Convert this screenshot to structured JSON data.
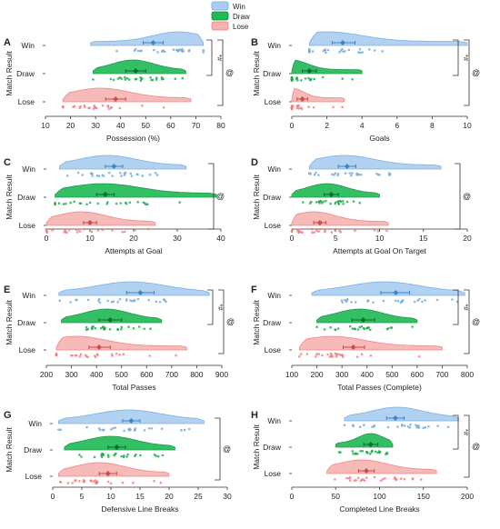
{
  "legend": {
    "items": [
      {
        "label": "Win",
        "color": "#6fa8dc"
      },
      {
        "label": "Draw",
        "color": "#1db954"
      },
      {
        "label": "Lose",
        "color": "#ef7a78"
      }
    ]
  },
  "colors": {
    "win": "#6fa8dc",
    "draw": "#1aa84a",
    "lose": "#ef7a78"
  },
  "chart_data": [
    {
      "panel": "A",
      "type": "raincloud",
      "title": "",
      "xlabel": "Possession (%)",
      "ylabel": "Match Result",
      "categories": [
        "Win",
        "Draw",
        "Lose"
      ],
      "xlim": [
        10,
        80
      ],
      "xticks": [
        10,
        20,
        30,
        40,
        50,
        60,
        70,
        80
      ],
      "series": [
        {
          "name": "Win",
          "mean": 53,
          "ci": [
            49,
            57
          ],
          "range": [
            28,
            73
          ],
          "peak": 63
        },
        {
          "name": "Draw",
          "mean": 46,
          "ci": [
            42,
            50
          ],
          "range": [
            29,
            66
          ],
          "peak": 45
        },
        {
          "name": "Lose",
          "mean": 38,
          "ci": [
            34,
            42
          ],
          "range": [
            17,
            68
          ],
          "peak": 32
        }
      ],
      "annotations": [
        "*#",
        "@"
      ]
    },
    {
      "panel": "B",
      "type": "raincloud",
      "title": "",
      "xlabel": "Goals",
      "ylabel": "Match Result",
      "categories": [
        "Win",
        "Draw",
        "Lose"
      ],
      "xlim": [
        0,
        10
      ],
      "xticks": [
        0,
        2,
        4,
        6,
        8,
        10
      ],
      "series": [
        {
          "name": "Win",
          "mean": 2.9,
          "ci": [
            2.3,
            3.6
          ],
          "range": [
            1,
            10
          ],
          "peak": 2
        },
        {
          "name": "Draw",
          "mean": 1.0,
          "ci": [
            0.6,
            1.4
          ],
          "range": [
            0,
            4
          ],
          "peak": 0
        },
        {
          "name": "Lose",
          "mean": 0.6,
          "ci": [
            0.3,
            0.9
          ],
          "range": [
            0,
            3
          ],
          "peak": 0
        }
      ],
      "annotations": [
        "*#",
        "@"
      ]
    },
    {
      "panel": "C",
      "type": "raincloud",
      "title": "",
      "xlabel": "Attempts at Goal",
      "ylabel": "Match Result",
      "categories": [
        "Win",
        "Draw",
        "Lose"
      ],
      "xlim": [
        0,
        40
      ],
      "xticks": [
        0,
        10,
        20,
        30,
        40
      ],
      "series": [
        {
          "name": "Win",
          "mean": 15.5,
          "ci": [
            13.5,
            17.5
          ],
          "range": [
            3,
            32
          ],
          "peak": 14
        },
        {
          "name": "Draw",
          "mean": 13.5,
          "ci": [
            11.5,
            15.5
          ],
          "range": [
            2,
            39
          ],
          "peak": 13
        },
        {
          "name": "Lose",
          "mean": 10,
          "ci": [
            8.5,
            11.5
          ],
          "range": [
            0,
            25
          ],
          "peak": 8
        }
      ],
      "annotations": [
        "@"
      ]
    },
    {
      "panel": "D",
      "type": "raincloud",
      "title": "",
      "xlabel": "Attempts at Goal On Target",
      "ylabel": "Match Result",
      "categories": [
        "Win",
        "Draw",
        "Lose"
      ],
      "xlim": [
        0,
        20
      ],
      "xticks": [
        0,
        5,
        10,
        15,
        20
      ],
      "series": [
        {
          "name": "Win",
          "mean": 6.3,
          "ci": [
            5.3,
            7.3
          ],
          "range": [
            2,
            17
          ],
          "peak": 6
        },
        {
          "name": "Draw",
          "mean": 4.5,
          "ci": [
            3.7,
            5.3
          ],
          "range": [
            0,
            10
          ],
          "peak": 4
        },
        {
          "name": "Lose",
          "mean": 3.2,
          "ci": [
            2.5,
            3.9
          ],
          "range": [
            0,
            11
          ],
          "peak": 2.5
        }
      ],
      "annotations": [
        "@"
      ]
    },
    {
      "panel": "E",
      "type": "raincloud",
      "title": "",
      "xlabel": "Total Passes",
      "ylabel": "Match Result",
      "categories": [
        "Win",
        "Draw",
        "Lose"
      ],
      "xlim": [
        200,
        900
      ],
      "xticks": [
        200,
        300,
        400,
        500,
        600,
        700,
        800,
        900
      ],
      "series": [
        {
          "name": "Win",
          "mean": 575,
          "ci": [
            520,
            630
          ],
          "range": [
            250,
            850
          ],
          "peak": 540
        },
        {
          "name": "Draw",
          "mean": 455,
          "ci": [
            410,
            500
          ],
          "range": [
            260,
            660
          ],
          "peak": 440
        },
        {
          "name": "Lose",
          "mean": 410,
          "ci": [
            370,
            455
          ],
          "range": [
            240,
            760
          ],
          "peak": 320
        }
      ],
      "annotations": [
        "*#",
        "@"
      ]
    },
    {
      "panel": "F",
      "type": "raincloud",
      "title": "",
      "xlabel": "Total Passes (Complete)",
      "ylabel": "Match Result",
      "categories": [
        "Win",
        "Draw",
        "Lose"
      ],
      "xlim": [
        100,
        800
      ],
      "xticks": [
        100,
        200,
        300,
        400,
        500,
        600,
        700,
        800
      ],
      "series": [
        {
          "name": "Win",
          "mean": 515,
          "ci": [
            455,
            570
          ],
          "range": [
            180,
            790
          ],
          "peak": 470
        },
        {
          "name": "Draw",
          "mean": 385,
          "ci": [
            340,
            430
          ],
          "range": [
            200,
            600
          ],
          "peak": 370
        },
        {
          "name": "Lose",
          "mean": 345,
          "ci": [
            305,
            390
          ],
          "range": [
            130,
            700
          ],
          "peak": 260
        }
      ],
      "annotations": [
        "*#",
        "@"
      ]
    },
    {
      "panel": "G",
      "type": "raincloud",
      "title": "",
      "xlabel": "Defensive Line Breaks",
      "ylabel": "Match Result",
      "categories": [
        "Win",
        "Draw",
        "Lose"
      ],
      "xlim": [
        0,
        30
      ],
      "xticks": [
        0,
        5,
        10,
        15,
        20,
        25,
        30
      ],
      "series": [
        {
          "name": "Win",
          "mean": 13.5,
          "ci": [
            12,
            15
          ],
          "range": [
            1,
            26
          ],
          "peak": 13
        },
        {
          "name": "Draw",
          "mean": 11,
          "ci": [
            9.5,
            12.5
          ],
          "range": [
            2,
            21
          ],
          "peak": 10
        },
        {
          "name": "Lose",
          "mean": 9.5,
          "ci": [
            8,
            11
          ],
          "range": [
            1,
            20
          ],
          "peak": 8
        }
      ],
      "annotations": [
        "@"
      ]
    },
    {
      "panel": "H",
      "type": "raincloud",
      "title": "",
      "xlabel": "Completed Line Breaks",
      "ylabel": "Match Result",
      "categories": [
        "Win",
        "Draw",
        "Lose"
      ],
      "xlim": [
        0,
        200
      ],
      "xticks": [
        0,
        50,
        100,
        150,
        200
      ],
      "series": [
        {
          "name": "Win",
          "mean": 118,
          "ci": [
            108,
            128
          ],
          "range": [
            60,
            190
          ],
          "peak": 120
        },
        {
          "name": "Draw",
          "mean": 90,
          "ci": [
            82,
            98
          ],
          "range": [
            50,
            115
          ],
          "peak": 90
        },
        {
          "name": "Lose",
          "mean": 85,
          "ci": [
            76,
            94
          ],
          "range": [
            40,
            165
          ],
          "peak": 80
        }
      ],
      "annotations": [
        "*#",
        "@"
      ]
    }
  ]
}
